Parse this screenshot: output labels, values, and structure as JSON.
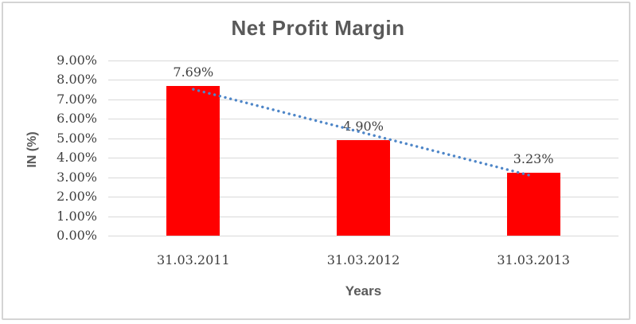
{
  "chart_data": {
    "type": "bar",
    "title": "Net Profit Margin",
    "xlabel": "Years",
    "ylabel": "IN (%)",
    "categories": [
      "31.03.2011",
      "31.03.2012",
      "31.03.2013"
    ],
    "values": [
      7.69,
      4.9,
      3.23
    ],
    "data_labels": [
      "7.69%",
      "4.90%",
      "3.23%"
    ],
    "y_ticks": [
      "9.00%",
      "8.00%",
      "7.00%",
      "6.00%",
      "5.00%",
      "4.00%",
      "3.00%",
      "2.00%",
      "1.00%",
      "0.00%"
    ],
    "ylim": [
      0,
      9
    ],
    "grid": true,
    "legend": "none",
    "colors": {
      "bar": "#ff0000",
      "trendline": "#4e86c8",
      "gridline": "#d9d9d9",
      "title_text": "#595959",
      "tick_text": "#3f3f3f",
      "frame_border": "#d4d4d4"
    },
    "trendline": {
      "type": "linear",
      "style": "dotted"
    }
  }
}
